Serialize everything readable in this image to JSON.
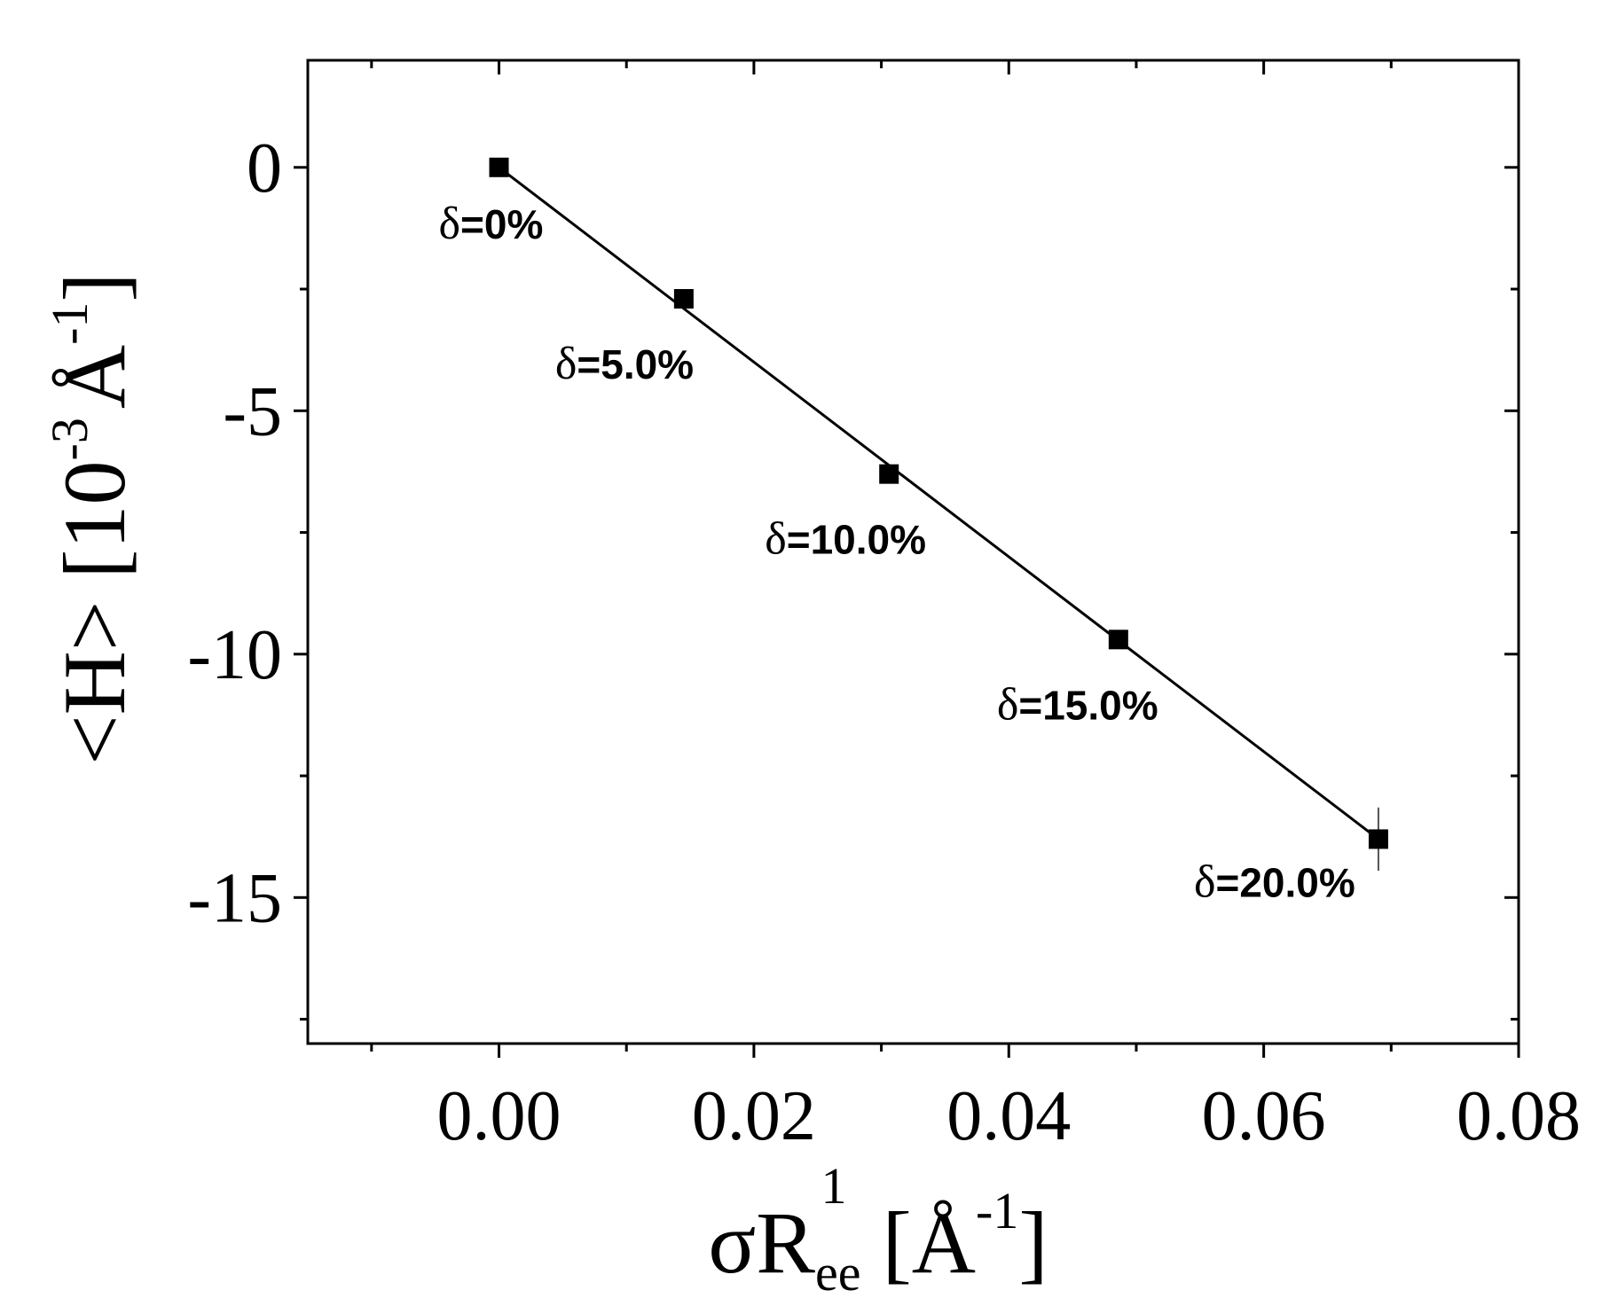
{
  "chart_data": {
    "type": "scatter",
    "xlabel": {
      "base": "σR",
      "sub": "ee",
      "sup": "1",
      "unit_open": "[Å",
      "unit_sup": "-1",
      "unit_close": "]"
    },
    "ylabel": {
      "prefix": "<H> [10",
      "sup1": "-3",
      "mid": "Å",
      "sup2": "-1",
      "suffix": "]"
    },
    "xlim": [
      -0.015,
      0.08
    ],
    "ylim": [
      -18,
      2.2
    ],
    "xticks": [
      {
        "value": 0.0,
        "label": "0.00"
      },
      {
        "value": 0.02,
        "label": "0.02"
      },
      {
        "value": 0.04,
        "label": "0.04"
      },
      {
        "value": 0.06,
        "label": "0.06"
      },
      {
        "value": 0.08,
        "label": "0.08"
      }
    ],
    "yticks": [
      {
        "value": 0,
        "label": "0"
      },
      {
        "value": -5,
        "label": "-5"
      },
      {
        "value": -10,
        "label": "-10"
      },
      {
        "value": -15,
        "label": "-15"
      }
    ],
    "x_minor_step": 0.01,
    "y_minor_step": 2.5,
    "series": [
      {
        "marker": "square",
        "color": "#000000",
        "points": [
          {
            "x": 0.0,
            "y": 0.0,
            "label_symbol": "δ",
            "label": "=0%"
          },
          {
            "x": 0.0145,
            "y": -2.7,
            "label_symbol": "δ",
            "label": "=5.0%"
          },
          {
            "x": 0.0306,
            "y": -6.3,
            "label_symbol": "δ",
            "label": "=10.0%"
          },
          {
            "x": 0.0486,
            "y": -9.7,
            "label_symbol": "δ",
            "label": "=15.0%"
          },
          {
            "x": 0.069,
            "y": -13.8,
            "label_symbol": "δ",
            "label": "=20.0%",
            "yerr": 0.65
          }
        ]
      }
    ],
    "fit_line": {
      "x": [
        0.0,
        0.069
      ],
      "y": [
        0.0,
        -13.8
      ],
      "color": "#000000"
    }
  }
}
